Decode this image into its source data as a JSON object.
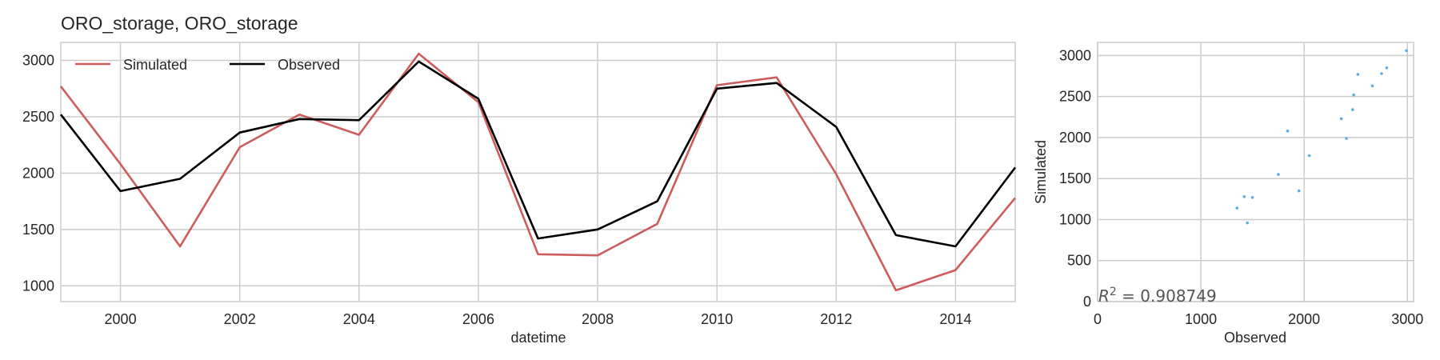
{
  "chart_data": [
    {
      "type": "line",
      "title": "ORO_storage, ORO_storage",
      "xlabel": "datetime",
      "ylabel": "",
      "x": [
        1999,
        2000,
        2001,
        2002,
        2003,
        2004,
        2005,
        2006,
        2007,
        2008,
        2009,
        2010,
        2011,
        2012,
        2013,
        2014,
        2015
      ],
      "xlim": [
        1999,
        2015
      ],
      "ylim": [
        860,
        3160
      ],
      "xticks": [
        "2000",
        "2002",
        "2004",
        "2006",
        "2008",
        "2010",
        "2012",
        "2014"
      ],
      "yticks": [
        "1000",
        "1500",
        "2000",
        "2500",
        "3000"
      ],
      "grid": true,
      "legend": "top-left",
      "series": [
        {
          "name": "Simulated",
          "color": "#cd5c5c",
          "values": [
            2770,
            2080,
            1350,
            2230,
            2520,
            2340,
            3060,
            2630,
            1280,
            1270,
            1550,
            2780,
            2850,
            1990,
            960,
            1140,
            1780
          ]
        },
        {
          "name": "Observed",
          "color": "#000000",
          "values": [
            2520,
            1840,
            1950,
            2360,
            2480,
            2470,
            2990,
            2660,
            1420,
            1500,
            1750,
            2750,
            2800,
            2410,
            1450,
            1350,
            2050
          ]
        }
      ]
    },
    {
      "type": "scatter",
      "xlabel": "Observed",
      "ylabel": "Simulated",
      "xlim": [
        0,
        3060
      ],
      "ylim": [
        0,
        3160
      ],
      "xticks": [
        "0",
        "1000",
        "2000",
        "3000"
      ],
      "yticks": [
        "0",
        "500",
        "1000",
        "1500",
        "2000",
        "2500",
        "3000"
      ],
      "grid": true,
      "color": "#5dade2",
      "annotation": "R^2 = 0.908749",
      "points": [
        [
          2520,
          2770
        ],
        [
          1840,
          2080
        ],
        [
          1950,
          1350
        ],
        [
          2360,
          2230
        ],
        [
          2480,
          2520
        ],
        [
          2470,
          2340
        ],
        [
          2990,
          3060
        ],
        [
          2660,
          2630
        ],
        [
          1420,
          1280
        ],
        [
          1500,
          1270
        ],
        [
          1750,
          1550
        ],
        [
          2750,
          2780
        ],
        [
          2800,
          2850
        ],
        [
          2410,
          1990
        ],
        [
          1450,
          960
        ],
        [
          1350,
          1140
        ],
        [
          2050,
          1780
        ]
      ]
    }
  ]
}
